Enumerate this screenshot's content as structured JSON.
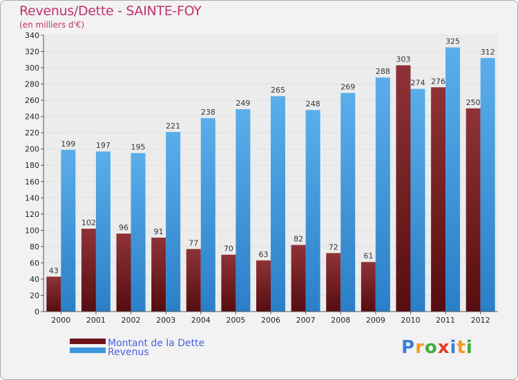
{
  "header": {
    "title": "Revenus/Dette - SAINTE-FOY",
    "subtitle": "(en milliers d'€)"
  },
  "logo": {
    "text": "Proxiti",
    "letter_colors": [
      "#3a7fd6",
      "#f39a1f",
      "#3fae3f",
      "#e23b2e",
      "#3a7fd6",
      "#f39a1f",
      "#3fae3f"
    ]
  },
  "chart_data": {
    "type": "bar",
    "title": "Revenus/Dette - SAINTE-FOY",
    "subtitle": "(en milliers d'€)",
    "xlabel": "",
    "ylabel": "",
    "ylim": [
      0,
      340
    ],
    "ytick_step": 20,
    "grid": true,
    "legend_position": "bottom-left",
    "categories": [
      "2000",
      "2001",
      "2002",
      "2003",
      "2004",
      "2005",
      "2006",
      "2007",
      "2008",
      "2009",
      "2010",
      "2011",
      "2012"
    ],
    "series": [
      {
        "name": "Montant de la Dette",
        "color": "#7a1f22",
        "values": [
          43,
          102,
          96,
          91,
          77,
          70,
          63,
          82,
          72,
          61,
          303,
          276,
          250
        ]
      },
      {
        "name": "Revenus",
        "color": "#3b97de",
        "values": [
          199,
          197,
          195,
          221,
          238,
          249,
          265,
          248,
          269,
          288,
          274,
          325,
          312
        ]
      }
    ]
  }
}
